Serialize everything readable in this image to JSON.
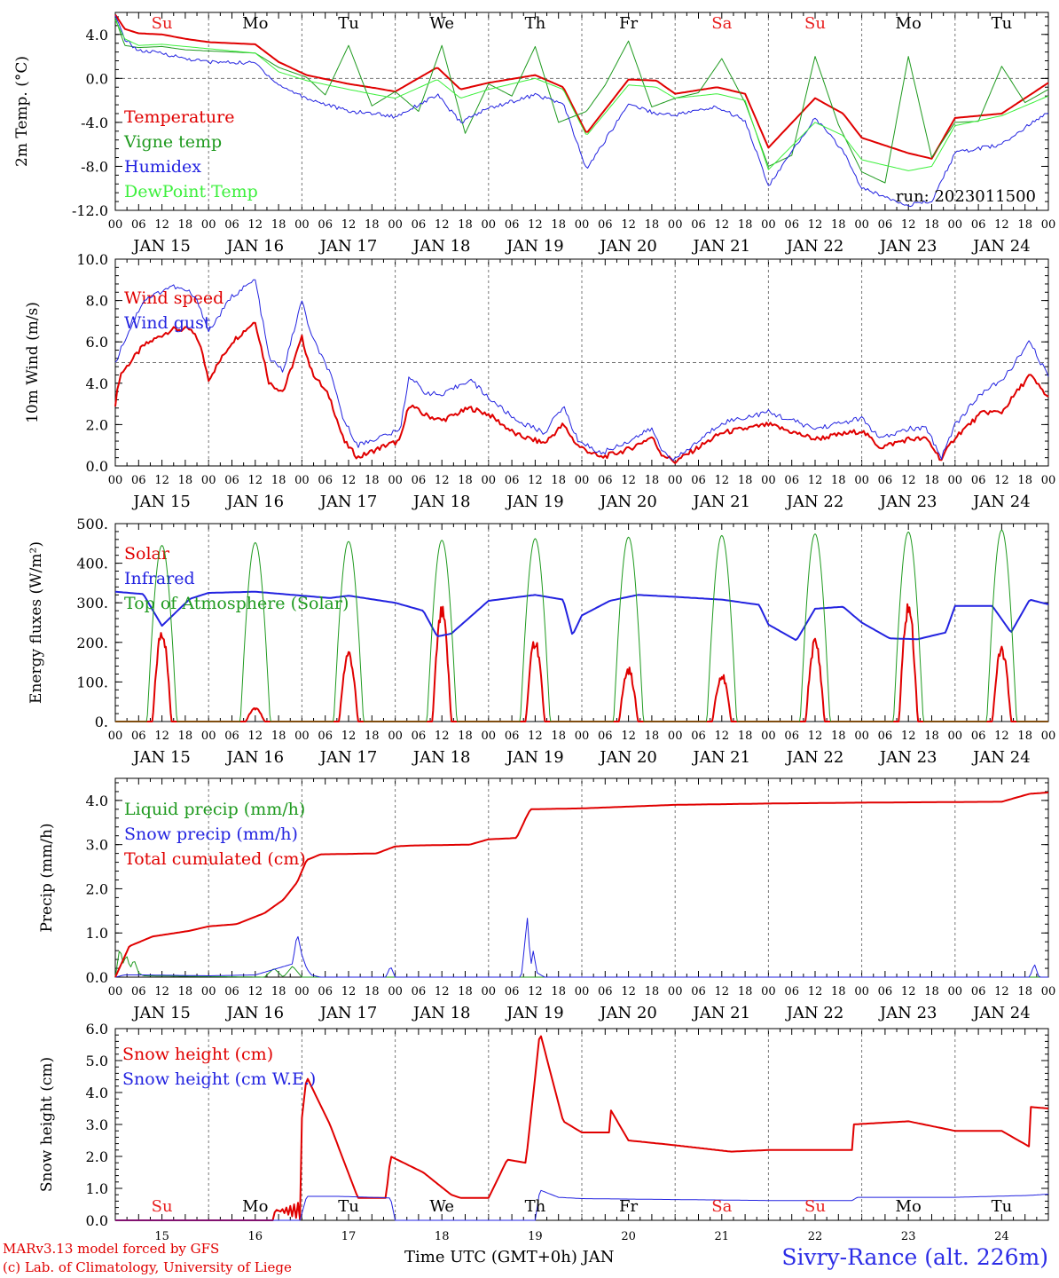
{
  "page": {
    "credit_line_1": "MARv3.13 model forced by GFS",
    "credit_line_2": "(c) Lab. of Climatology, University of Liege",
    "station": "Sivry-Rance (alt. 226m)",
    "x_axis_title": "Time UTC (GMT+0h) JAN",
    "run_label": "run: 2023011500"
  },
  "colors": {
    "red": "#e00000",
    "dark_green": "#1f9a1f",
    "blue": "#2323e0",
    "light_green": "#3cf03c",
    "sunday_red": "#e82020",
    "grey_dash": "#777777"
  },
  "time_axis": {
    "hour_labels": [
      "00",
      "06",
      "12",
      "18"
    ],
    "date_labels": [
      "JAN 15",
      "JAN 16",
      "JAN 17",
      "JAN 18",
      "JAN 19",
      "JAN 20",
      "JAN 21",
      "JAN 22",
      "JAN 23",
      "JAN 24"
    ],
    "weekdays": [
      "Su",
      "Mo",
      "Tu",
      "We",
      "Th",
      "Fr",
      "Sa",
      "Su",
      "Mo",
      "Tu"
    ],
    "weekday_is_weekend": [
      true,
      false,
      false,
      false,
      false,
      false,
      true,
      true,
      false,
      false
    ],
    "day_numbers": [
      "15",
      "16",
      "17",
      "18",
      "19",
      "20",
      "21",
      "22",
      "23",
      "24"
    ],
    "start": "2023-01-15 00",
    "end": "2023-01-25 00"
  },
  "chart_data": [
    {
      "type": "line",
      "ylabel": "2m Temp. (°C)",
      "ylim": [
        -12,
        6
      ],
      "yticks": [
        "4.0",
        "0.0",
        "-4.0",
        "-8.0",
        "-12.0"
      ],
      "ytick_values": [
        4,
        0,
        -4,
        -8,
        -12
      ],
      "dashed_reference": 0,
      "series": [
        {
          "name": "Temperature",
          "color": "#e00000",
          "width": 2,
          "x_day": [
            0,
            0.1,
            0.25,
            0.5,
            0.75,
            1.0,
            1.5,
            1.75,
            2.05,
            2.5,
            2.8,
            3.0,
            3.45,
            3.7,
            4.0,
            4.5,
            4.8,
            5.05,
            5.5,
            5.8,
            6.0,
            6.45,
            6.75,
            7.0,
            7.5,
            7.8,
            8.0,
            8.5,
            8.75,
            9.0,
            9.5,
            10.0
          ],
          "values": [
            5.8,
            4.5,
            4.1,
            4.0,
            3.6,
            3.3,
            3.1,
            1.5,
            0.3,
            -0.5,
            -0.9,
            -1.2,
            1.0,
            -1.0,
            -0.4,
            0.3,
            -0.8,
            -5.0,
            -0.1,
            -0.2,
            -1.4,
            -0.8,
            -1.4,
            -6.3,
            -1.8,
            -3.2,
            -5.4,
            -6.8,
            -7.3,
            -3.6,
            -3.2,
            -0.4
          ]
        },
        {
          "name": "Vigne temp",
          "color": "#1f9a1f",
          "width": 1,
          "x_day": [
            0,
            0.1,
            0.25,
            0.5,
            0.75,
            1.0,
            1.5,
            1.75,
            2.05,
            2.25,
            2.5,
            2.75,
            3.0,
            3.25,
            3.5,
            3.75,
            4.0,
            4.25,
            4.5,
            4.75,
            5.05,
            5.25,
            5.5,
            5.75,
            6.0,
            6.25,
            6.5,
            6.75,
            7.0,
            7.25,
            7.5,
            7.75,
            8.0,
            8.25,
            8.5,
            8.75,
            9.0,
            9.25,
            9.5,
            9.75,
            10.0
          ],
          "values": [
            5.5,
            3.0,
            2.8,
            2.9,
            2.6,
            2.5,
            2.3,
            1.0,
            0.1,
            -1.5,
            3.0,
            -2.5,
            -1.2,
            -3.0,
            3.0,
            -5.0,
            -0.5,
            -1.6,
            2.9,
            -4.0,
            -3.0,
            -0.6,
            3.4,
            -2.6,
            -1.8,
            -1.3,
            1.8,
            -2.2,
            -8.0,
            -7.0,
            2.0,
            -4.2,
            -8.5,
            -9.5,
            2.0,
            -7.2,
            -4.0,
            -3.9,
            1.1,
            -2.2,
            -1.0
          ]
        },
        {
          "name": "Humidex",
          "color": "#2323e0",
          "width": 1,
          "x_day": [
            0,
            0.1,
            0.25,
            0.5,
            0.75,
            1.0,
            1.5,
            1.75,
            2.05,
            2.5,
            2.8,
            3.0,
            3.45,
            3.7,
            4.0,
            4.5,
            4.8,
            5.05,
            5.5,
            5.8,
            6.0,
            6.45,
            6.75,
            7.0,
            7.5,
            7.8,
            8.0,
            8.5,
            8.75,
            9.0,
            9.5,
            10.0
          ],
          "values": [
            5.6,
            3.6,
            2.5,
            2.3,
            1.8,
            1.5,
            1.4,
            -0.6,
            -1.8,
            -3.0,
            -3.2,
            -3.5,
            -1.5,
            -4.0,
            -2.7,
            -1.5,
            -2.3,
            -8.3,
            -2.3,
            -3.2,
            -3.3,
            -2.6,
            -3.8,
            -9.8,
            -3.6,
            -6.6,
            -10.0,
            -11.5,
            -11.2,
            -6.8,
            -6.0,
            -3.0
          ]
        },
        {
          "name": "DewPoint Temp",
          "color": "#3cf03c",
          "width": 1,
          "x_day": [
            0,
            0.1,
            0.25,
            0.5,
            0.75,
            1.0,
            1.5,
            1.75,
            2.05,
            2.5,
            2.8,
            3.0,
            3.45,
            3.7,
            4.0,
            4.5,
            4.8,
            5.05,
            5.5,
            5.8,
            6.0,
            6.45,
            6.75,
            7.0,
            7.5,
            7.8,
            8.0,
            8.5,
            8.75,
            9.0,
            9.5,
            10.0
          ],
          "values": [
            5.3,
            3.6,
            3.0,
            3.1,
            2.9,
            2.7,
            2.3,
            0.6,
            -0.2,
            -1.0,
            -1.5,
            -1.8,
            -0.1,
            -1.8,
            -1.0,
            0.0,
            -1.0,
            -5.2,
            -0.6,
            -0.8,
            -1.8,
            -1.4,
            -2.0,
            -8.3,
            -4.0,
            -5.2,
            -7.4,
            -8.4,
            -8.0,
            -4.3,
            -3.4,
            -1.6
          ]
        }
      ]
    },
    {
      "type": "line",
      "ylabel": "10m Wind (m/s)",
      "ylim": [
        0,
        10
      ],
      "yticks": [
        "10.0",
        "8.0",
        "6.0",
        "4.0",
        "2.0",
        "0.0"
      ],
      "ytick_values": [
        10,
        8,
        6,
        4,
        2,
        0
      ],
      "dashed_reference": 5,
      "series": [
        {
          "name": "Wind speed",
          "color": "#e00000",
          "width": 2,
          "x_day": [
            0,
            0.05,
            0.3,
            0.6,
            0.8,
            0.9,
            1.0,
            1.25,
            1.5,
            1.65,
            1.8,
            2.0,
            2.1,
            2.3,
            2.45,
            2.6,
            2.9,
            3.05,
            3.15,
            3.3,
            3.5,
            3.8,
            4.0,
            4.3,
            4.6,
            4.8,
            4.95,
            5.2,
            5.5,
            5.75,
            5.85,
            6.0,
            6.5,
            7.0,
            7.5,
            8.0,
            8.2,
            8.5,
            8.7,
            8.85,
            9.0,
            9.3,
            9.5,
            9.8,
            10.0
          ],
          "values": [
            3.0,
            4.4,
            5.8,
            6.6,
            6.6,
            6.0,
            4.2,
            6.0,
            7.0,
            4.0,
            3.6,
            6.2,
            4.6,
            3.3,
            1.2,
            0.4,
            1.0,
            1.2,
            3.0,
            2.5,
            2.2,
            2.8,
            2.5,
            1.5,
            1.1,
            2.0,
            1.0,
            0.4,
            0.8,
            1.4,
            0.6,
            0.2,
            1.6,
            2.0,
            1.3,
            1.7,
            0.9,
            1.3,
            1.3,
            0.3,
            1.4,
            2.6,
            2.6,
            4.4,
            3.3
          ]
        },
        {
          "name": "Wind gust",
          "color": "#2323e0",
          "width": 1,
          "x_day": [
            0,
            0.05,
            0.3,
            0.6,
            0.8,
            0.9,
            1.0,
            1.25,
            1.5,
            1.65,
            1.8,
            2.0,
            2.1,
            2.3,
            2.45,
            2.6,
            2.9,
            3.05,
            3.15,
            3.3,
            3.5,
            3.8,
            4.0,
            4.3,
            4.6,
            4.8,
            4.95,
            5.2,
            5.5,
            5.75,
            5.85,
            6.0,
            6.5,
            7.0,
            7.5,
            8.0,
            8.2,
            8.5,
            8.7,
            8.85,
            9.0,
            9.3,
            9.5,
            9.8,
            10.0
          ],
          "values": [
            4.9,
            5.6,
            8.0,
            8.7,
            8.4,
            7.8,
            6.5,
            8.2,
            9.0,
            5.2,
            4.6,
            8.0,
            6.3,
            4.5,
            2.2,
            1.0,
            1.5,
            1.7,
            4.4,
            3.6,
            3.4,
            4.2,
            3.3,
            2.2,
            1.6,
            2.9,
            1.3,
            0.6,
            1.2,
            1.8,
            0.8,
            0.3,
            2.1,
            2.6,
            1.8,
            2.3,
            1.3,
            1.8,
            1.8,
            0.4,
            2.0,
            3.6,
            4.1,
            6.0,
            4.3
          ]
        }
      ]
    },
    {
      "type": "line",
      "ylabel": "Energy fluxes (W/m²)",
      "ylim": [
        0,
        500
      ],
      "yticks": [
        "500.",
        "400.",
        "300.",
        "200.",
        "100.",
        "0."
      ],
      "ytick_values": [
        500,
        400,
        300,
        200,
        100,
        0
      ],
      "series": [
        {
          "name": "Solar",
          "color": "#e00000",
          "width": 2,
          "daily_peak": [
            245,
            35,
            185,
            295,
            218,
            140,
            125,
            215,
            310,
            195
          ]
        },
        {
          "name": "Infrared",
          "color": "#2323e0",
          "width": 2,
          "x_day": [
            0,
            0.3,
            0.5,
            0.8,
            1.0,
            1.5,
            2.0,
            2.3,
            2.5,
            3.0,
            3.3,
            3.45,
            3.6,
            4.0,
            4.5,
            4.8,
            4.9,
            5.0,
            5.3,
            5.6,
            6.0,
            6.5,
            6.9,
            7.0,
            7.3,
            7.5,
            7.8,
            8.0,
            8.3,
            8.6,
            8.9,
            9.0,
            9.4,
            9.6,
            9.8,
            10.0
          ],
          "values": [
            328,
            322,
            242,
            310,
            325,
            328,
            318,
            312,
            318,
            300,
            280,
            215,
            222,
            305,
            320,
            308,
            218,
            268,
            305,
            320,
            315,
            308,
            295,
            245,
            205,
            285,
            290,
            250,
            210,
            208,
            225,
            292,
            292,
            225,
            308,
            296
          ]
        },
        {
          "name": "Top of Atmosphere (Solar)",
          "color": "#1f9a1f",
          "width": 1,
          "daily_peak": [
            445,
            452,
            455,
            458,
            462,
            466,
            470,
            474,
            479,
            484
          ]
        }
      ]
    },
    {
      "type": "line",
      "ylabel": "Precip (mm/h)",
      "ylim": [
        0,
        4.5
      ],
      "yticks": [
        "4.0",
        "3.0",
        "2.0",
        "1.0",
        "0.0"
      ],
      "ytick_values": [
        4,
        3,
        2,
        1,
        0
      ],
      "series": [
        {
          "name": "Liquid precip (mm/h)",
          "color": "#1f9a1f",
          "width": 1,
          "x_day": [
            0,
            0.05,
            0.08,
            0.12,
            0.16,
            0.2,
            0.25,
            0.3,
            1.6,
            1.7,
            1.8,
            1.9,
            2.0
          ],
          "values": [
            0,
            0.7,
            0.3,
            0.5,
            0.2,
            0.4,
            0.1,
            0.03,
            0,
            0.2,
            0,
            0.25,
            0
          ]
        },
        {
          "name": "Snow precip (mm/h)",
          "color": "#2323e0",
          "width": 1,
          "x_day": [
            0,
            0.1,
            0.3,
            1.0,
            1.5,
            1.9,
            1.95,
            2.0,
            2.05,
            2.1,
            2.2,
            2.9,
            2.95,
            3.0,
            4.35,
            4.42,
            4.45,
            4.48,
            4.52,
            4.6,
            9.8,
            9.85,
            9.9,
            10.0
          ],
          "values": [
            0,
            0.05,
            0.05,
            0.03,
            0.05,
            0.3,
            1.0,
            0.5,
            0.2,
            0.05,
            0,
            0,
            0.25,
            0,
            0,
            1.4,
            0.2,
            0.6,
            0.1,
            0,
            0,
            0.3,
            0,
            0
          ]
        },
        {
          "name": "Total cumulated (cm)",
          "color": "#e00000",
          "width": 2,
          "x_day": [
            0,
            0.15,
            0.4,
            0.8,
            1.0,
            1.3,
            1.6,
            1.8,
            1.95,
            2.05,
            2.2,
            2.8,
            3.0,
            3.2,
            3.8,
            4.0,
            4.3,
            4.4,
            4.45,
            5.0,
            6.0,
            7.0,
            8.0,
            9.5,
            9.8,
            10.0
          ],
          "values": [
            0,
            0.7,
            0.92,
            1.05,
            1.15,
            1.2,
            1.45,
            1.75,
            2.15,
            2.65,
            2.78,
            2.8,
            2.96,
            2.98,
            3.0,
            3.12,
            3.15,
            3.6,
            3.8,
            3.82,
            3.9,
            3.93,
            3.95,
            3.97,
            4.15,
            4.18
          ]
        }
      ]
    },
    {
      "type": "line",
      "ylabel": "Snow height (cm)",
      "ylim": [
        0,
        6
      ],
      "yticks": [
        "6.0",
        "5.0",
        "4.0",
        "3.0",
        "2.0",
        "1.0",
        "0.0"
      ],
      "ytick_values": [
        6,
        5,
        4,
        3,
        2,
        1,
        0
      ],
      "series": [
        {
          "name": "Snow height (cm)",
          "color": "#e00000",
          "width": 2,
          "x_day": [
            0,
            1.7,
            1.72,
            1.74,
            1.76,
            1.78,
            1.8,
            1.82,
            1.84,
            1.86,
            1.88,
            1.9,
            1.92,
            1.94,
            1.96,
            1.98,
            2.0,
            2.05,
            2.3,
            2.6,
            2.9,
            2.95,
            3.3,
            3.6,
            3.7,
            4.0,
            4.2,
            4.4,
            4.5,
            4.55,
            4.8,
            5.0,
            5.3,
            5.3,
            5.5,
            6.0,
            6.6,
            7.0,
            7.5,
            7.9,
            7.9,
            8.5,
            9.0,
            9.5,
            9.8,
            9.8,
            10.0
          ],
          "values": [
            0,
            0,
            0.6,
            0,
            0.6,
            0,
            0.6,
            0,
            0.6,
            0,
            0.6,
            0,
            0.6,
            0,
            0.6,
            0,
            3.2,
            4.5,
            3.0,
            0.7,
            0.7,
            2.0,
            1.5,
            0.8,
            0.7,
            0.7,
            1.9,
            1.8,
            4.5,
            5.9,
            3.1,
            2.75,
            2.75,
            3.5,
            2.5,
            2.35,
            2.15,
            2.2,
            2.2,
            2.2,
            3.0,
            3.1,
            2.8,
            2.8,
            2.3,
            3.55,
            3.5
          ]
        },
        {
          "name": "Snow height (cm W.E.)",
          "color": "#2323e0",
          "width": 1,
          "x_day": [
            0,
            1.98,
            2.05,
            2.4,
            2.95,
            3.0,
            4.5,
            4.55,
            4.75,
            5.0,
            6.0,
            7.0,
            7.9,
            7.95,
            9.0,
            9.8,
            10.0
          ],
          "values": [
            0,
            0,
            0.75,
            0.75,
            0.7,
            0,
            0,
            0.95,
            0.72,
            0.68,
            0.65,
            0.62,
            0.62,
            0.72,
            0.72,
            0.78,
            0.82
          ]
        }
      ]
    }
  ]
}
